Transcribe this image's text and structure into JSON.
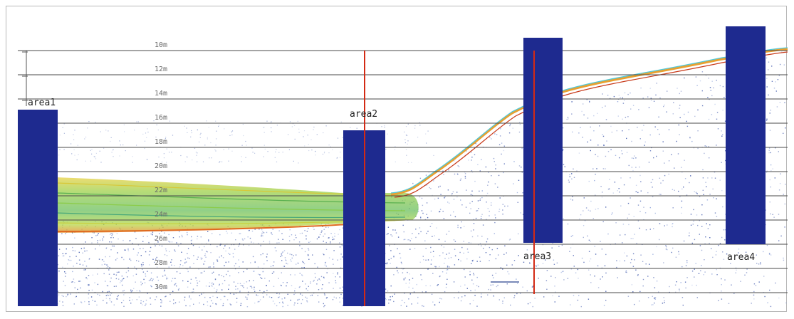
{
  "depth_labels": [
    "10m",
    "12m",
    "14m",
    "16m",
    "18m",
    "20m",
    "22m",
    "24m",
    "26m",
    "28m",
    "30m"
  ],
  "areas": [
    {
      "label": "area1"
    },
    {
      "label": "area2"
    },
    {
      "label": "area3"
    },
    {
      "label": "area4"
    }
  ],
  "colors": {
    "area_block": "#1e2a8f",
    "marker_line": "#d32a14",
    "gridline": "#4a4a4a",
    "bottom_echo": "#f0a020",
    "water_echo": "#7ec850",
    "noise": "#3550a8"
  }
}
